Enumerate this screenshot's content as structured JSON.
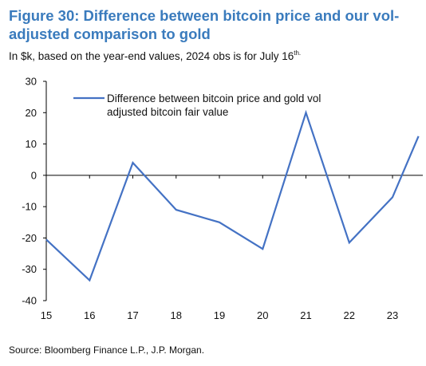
{
  "figure": {
    "title": "Figure 30: Difference between bitcoin price and our vol-adjusted comparison to gold",
    "subtitle_main": "In $k, based on the year-end values, 2024 obs is for July 16",
    "subtitle_sup": "th.",
    "source": "Source: Bloomberg Finance L.P., J.P. Morgan."
  },
  "chart_data": {
    "type": "line",
    "title": "Figure 30: Difference between bitcoin price and our vol-adjusted comparison to gold",
    "xlabel": "",
    "ylabel": "",
    "ylim": [
      -40,
      30
    ],
    "yticks": [
      30,
      20,
      10,
      0,
      -10,
      -20,
      -30,
      -40
    ],
    "ytick_labels": [
      "30",
      "20",
      "10",
      "0",
      "-10",
      "-20",
      "-30",
      "-40"
    ],
    "xlim": [
      15,
      23.7
    ],
    "xticks": [
      15,
      16,
      17,
      18,
      19,
      20,
      21,
      22,
      23
    ],
    "xtick_labels": [
      "15",
      "16",
      "17",
      "18",
      "19",
      "20",
      "21",
      "22",
      "23"
    ],
    "grid": false,
    "legend_position": "top-center",
    "colors": {
      "line": "#4472c4",
      "axis": "#000000"
    },
    "series": [
      {
        "name": "Difference between bitcoin price and gold vol adjusted bitcoin fair value",
        "legend_lines": [
          "Difference between bitcoin price and gold vol",
          "adjusted bitcoin fair value"
        ],
        "x": [
          15,
          16,
          17,
          18,
          19,
          20,
          21,
          22,
          23,
          23.6
        ],
        "y": [
          -20.5,
          -33.5,
          4,
          -11,
          -15,
          -23.5,
          20,
          -21.5,
          -7,
          12.5
        ]
      }
    ]
  }
}
